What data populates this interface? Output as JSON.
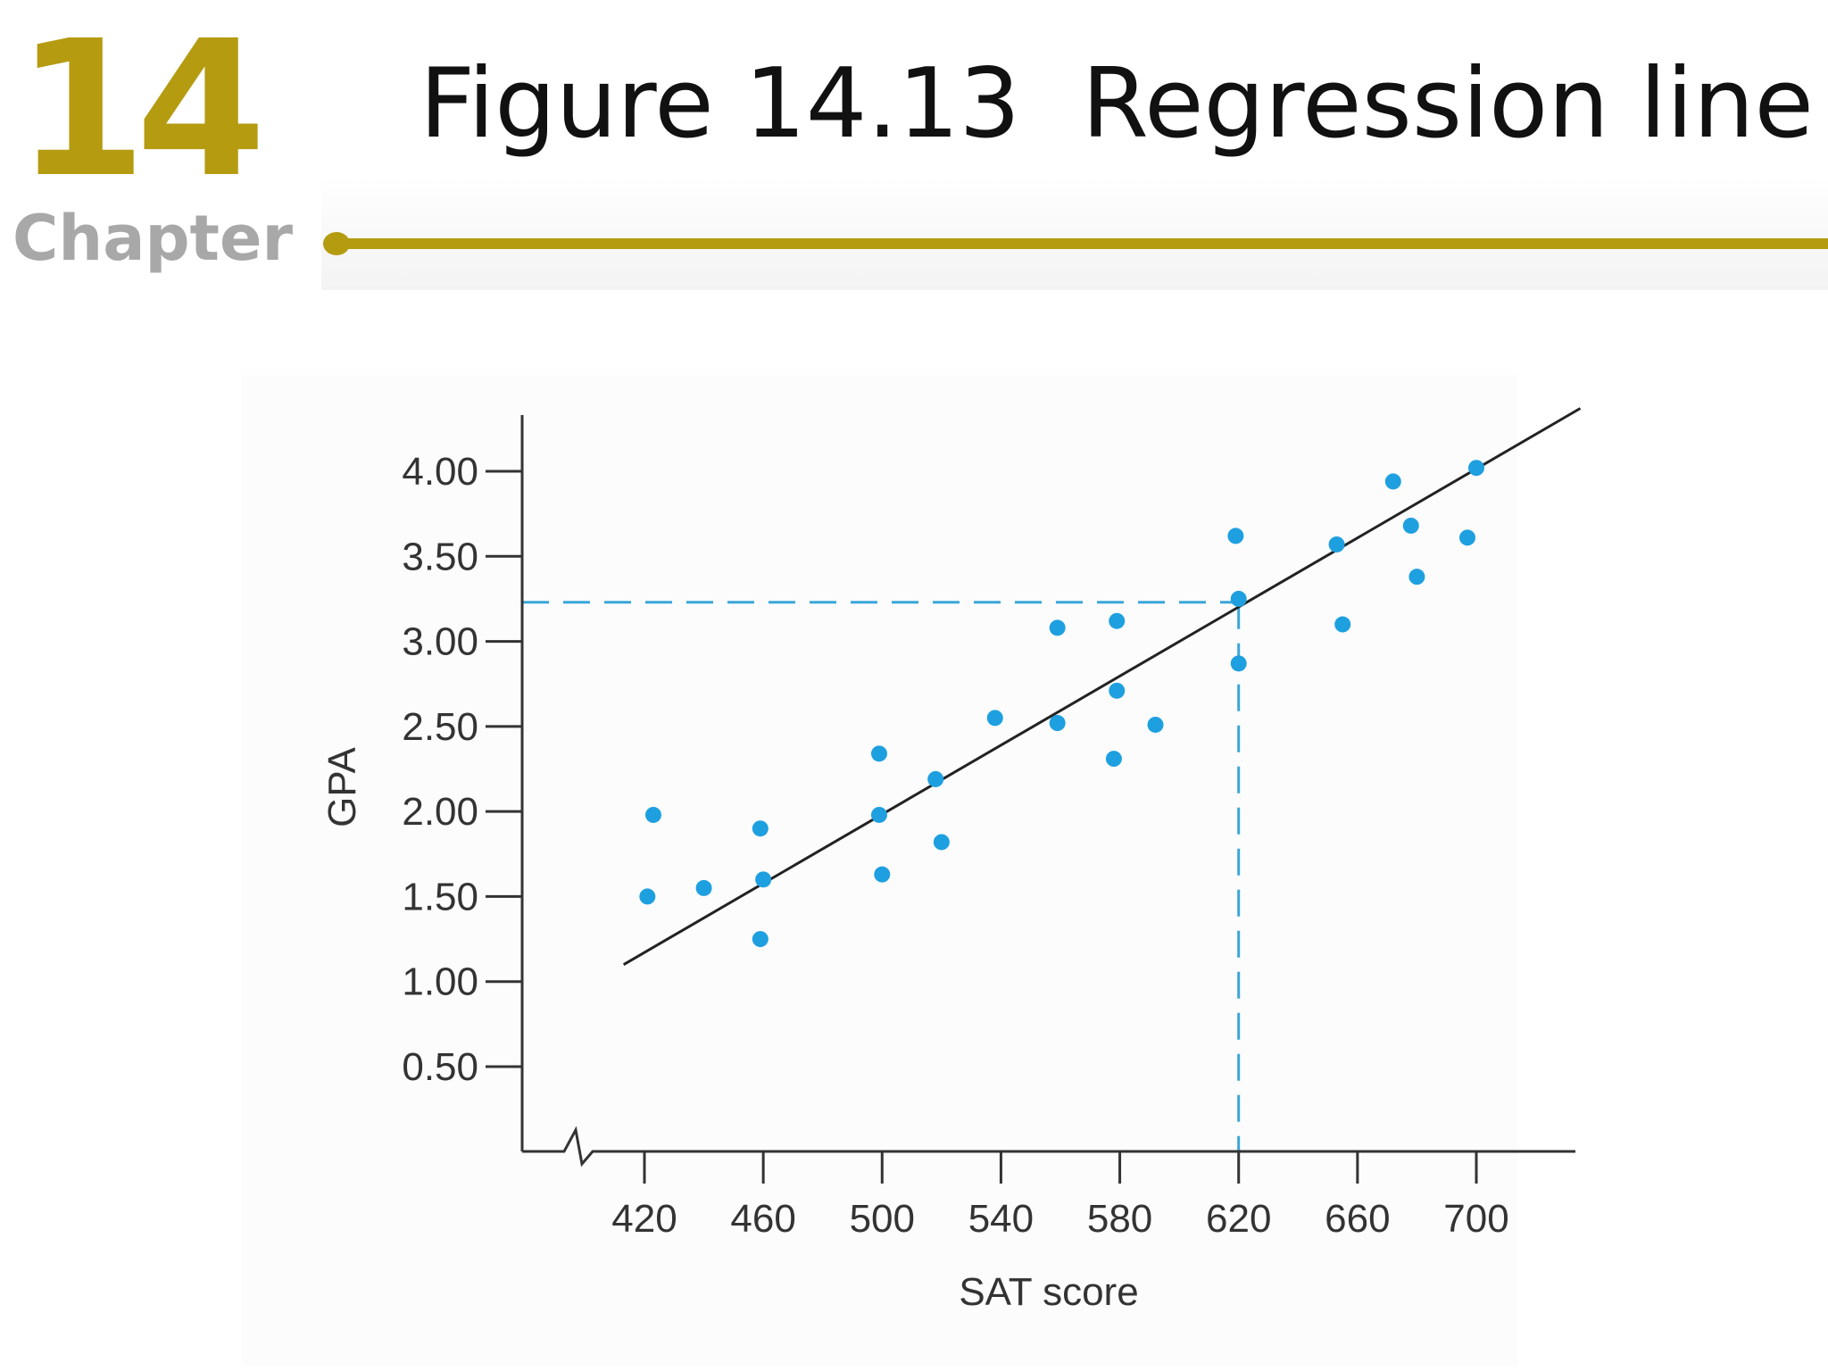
{
  "header": {
    "chapter_number": "14",
    "chapter_word": "Chapter",
    "title": "Figure 14.13  Regression line",
    "accent_color": "#b59b10"
  },
  "chart_data": {
    "type": "scatter",
    "xlabel": "SAT score",
    "ylabel": "GPA",
    "x_ticks": [
      420,
      460,
      500,
      540,
      580,
      620,
      660,
      700
    ],
    "y_ticks": [
      0.5,
      1.0,
      1.5,
      2.0,
      2.5,
      3.0,
      3.5,
      4.0
    ],
    "x_tick_labels": [
      "420",
      "460",
      "500",
      "540",
      "580",
      "620",
      "660",
      "700"
    ],
    "y_tick_labels": [
      "0.50",
      "1.00",
      "1.50",
      "2.00",
      "2.50",
      "3.00",
      "3.50",
      "4.00"
    ],
    "xlim": [
      378,
      735
    ],
    "ylim": [
      0,
      4.3
    ],
    "x_axis_break": true,
    "grid": false,
    "point_color": "#1ea0e0",
    "line_color": "#222222",
    "guide_color": "#3aa6d8",
    "points": [
      {
        "x": 421,
        "y": 1.5
      },
      {
        "x": 423,
        "y": 1.98
      },
      {
        "x": 440,
        "y": 1.55
      },
      {
        "x": 459,
        "y": 1.25
      },
      {
        "x": 459,
        "y": 1.9
      },
      {
        "x": 460,
        "y": 1.6
      },
      {
        "x": 499,
        "y": 2.34
      },
      {
        "x": 499,
        "y": 1.98
      },
      {
        "x": 500,
        "y": 1.63
      },
      {
        "x": 518,
        "y": 2.19
      },
      {
        "x": 520,
        "y": 1.82
      },
      {
        "x": 538,
        "y": 2.55
      },
      {
        "x": 559,
        "y": 3.08
      },
      {
        "x": 559,
        "y": 2.52
      },
      {
        "x": 578,
        "y": 2.31
      },
      {
        "x": 579,
        "y": 2.71
      },
      {
        "x": 579,
        "y": 3.12
      },
      {
        "x": 592,
        "y": 2.51
      },
      {
        "x": 619,
        "y": 3.62
      },
      {
        "x": 620,
        "y": 3.25
      },
      {
        "x": 620,
        "y": 2.87
      },
      {
        "x": 653,
        "y": 3.57
      },
      {
        "x": 655,
        "y": 3.1
      },
      {
        "x": 672,
        "y": 3.94
      },
      {
        "x": 678,
        "y": 3.68
      },
      {
        "x": 680,
        "y": 3.38
      },
      {
        "x": 697,
        "y": 3.61
      },
      {
        "x": 700,
        "y": 4.02
      }
    ],
    "regression_line": {
      "x1": 413,
      "y1": 1.1,
      "x2": 735,
      "y2": 4.37
    },
    "prediction_guide": {
      "x": 620,
      "y": 3.23
    }
  }
}
